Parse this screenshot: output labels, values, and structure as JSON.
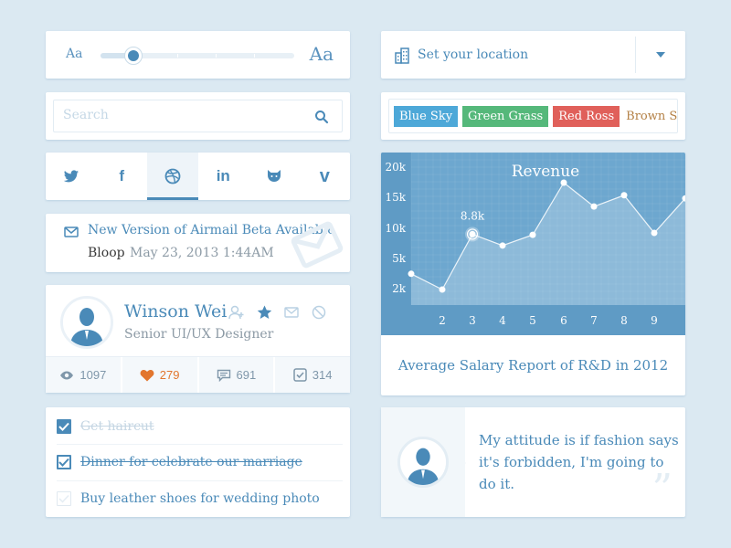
{
  "slider": {
    "small_label": "Aa",
    "large_label": "Aa",
    "value_fraction": 0.17
  },
  "search": {
    "placeholder": "Search"
  },
  "social": {
    "items": [
      {
        "name": "twitter",
        "glyph": ""
      },
      {
        "name": "facebook",
        "glyph": "f"
      },
      {
        "name": "dribbble",
        "glyph": ""
      },
      {
        "name": "linkedin",
        "glyph": "in"
      },
      {
        "name": "github",
        "glyph": ""
      },
      {
        "name": "vimeo",
        "glyph": "v"
      }
    ],
    "active_index": 2
  },
  "mail": {
    "title": "New Version of Airmail Beta Available",
    "from": "Bloop",
    "date": "May 23, 2013 1:44AM"
  },
  "profile": {
    "name": "Winson Wei",
    "title": "Senior UI/UX Designer",
    "stats": {
      "views": "1097",
      "likes": "279",
      "comments": "691",
      "checks": "314"
    }
  },
  "todos": [
    {
      "text": "Get haircut",
      "state": "done-faded"
    },
    {
      "text": "Dinner for celebrate our marriage",
      "state": "done"
    },
    {
      "text": "Buy  leather shoes for wedding photo",
      "state": "open"
    }
  ],
  "location": {
    "label": "Set your location"
  },
  "tags": {
    "items": [
      {
        "label": "Blue Sky",
        "color": "#4da8d8"
      },
      {
        "label": "Green Grass",
        "color": "#55b87a"
      },
      {
        "label": "Red Ross",
        "color": "#e0605a"
      }
    ],
    "typing": "Brown Sh"
  },
  "chart_data": {
    "type": "area",
    "title": "Revenue",
    "caption": "Average Salary Report of R&D in 2012",
    "x_ticks": [
      "2",
      "3",
      "4",
      "5",
      "6",
      "7",
      "8",
      "9"
    ],
    "y_ticks": [
      "20k",
      "15k",
      "10k",
      "5k",
      "2k"
    ],
    "x": [
      1,
      2,
      3,
      4,
      5,
      6,
      7,
      8,
      9,
      10
    ],
    "values": [
      2.5,
      0,
      8.8,
      7.0,
      8.7,
      17.0,
      13.2,
      15.0,
      9.0,
      14.5
    ],
    "highlight": {
      "index": 2,
      "label": "8.8k"
    }
  },
  "quote": {
    "text": "My attitude is if fashion says it's forbidden, I'm going to do it.",
    "mark": "”"
  },
  "colors": {
    "accent": "#4a8ab8",
    "chart_bg": "#6fa8cf",
    "heart": "#e2762e"
  }
}
